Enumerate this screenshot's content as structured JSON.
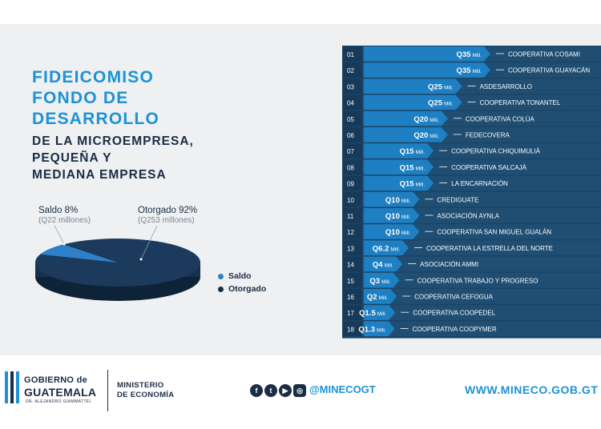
{
  "title": {
    "main_lines": [
      "FIDEICOMISO",
      "FONDO DE",
      "DESARROLLO"
    ],
    "sub_lines": [
      "DE LA MICROEMPRESA,",
      "PEQUEÑA Y",
      "MEDIANA EMPRESA"
    ]
  },
  "colors": {
    "accent": "#1d92d6",
    "navy": "#1b2c45",
    "row_bg": "#1b4464",
    "bar": "#1e7fc2"
  },
  "chart_data": [
    {
      "type": "pie",
      "slices": [
        {
          "label": "Saldo 8%",
          "sub": "(Q22 millones)",
          "percent": 8,
          "amount_millions": 22,
          "color": "#2f80c9"
        },
        {
          "label": "Otorgado 92%",
          "sub": "(Q253 millones)",
          "percent": 92,
          "amount_millions": 253,
          "color": "#1b3a5c"
        }
      ],
      "legend": [
        "Saldo",
        "Otorgado"
      ],
      "legend_position": "right"
    },
    {
      "type": "bar",
      "unit": "Mill.",
      "rows": [
        {
          "num": "01",
          "label": "Q35",
          "value": 35,
          "name": "COOPERATIVA COSAMI"
        },
        {
          "num": "02",
          "label": "Q35",
          "value": 35,
          "name": "COOPERATIVA GUAYACÁN"
        },
        {
          "num": "03",
          "label": "Q25",
          "value": 25,
          "name": "ASDESARROLLO"
        },
        {
          "num": "04",
          "label": "Q25",
          "value": 25,
          "name": "COOPERATIVA TONANTEL"
        },
        {
          "num": "05",
          "label": "Q20",
          "value": 20,
          "name": "COOPERATIVA COLÚA"
        },
        {
          "num": "06",
          "label": "Q20",
          "value": 20,
          "name": "FEDECOVERA"
        },
        {
          "num": "07",
          "label": "Q15",
          "value": 15,
          "name": "COOPERATIVA CHIQUIMULIÁ"
        },
        {
          "num": "08",
          "label": "Q15",
          "value": 15,
          "name": "COOPERATIVA SALCAJÁ"
        },
        {
          "num": "09",
          "label": "Q15",
          "value": 15,
          "name": "LA ENCARNACIÓN"
        },
        {
          "num": "10",
          "label": "Q10",
          "value": 10,
          "name": "CREDIGUATE"
        },
        {
          "num": "11",
          "label": "Q10",
          "value": 10,
          "name": "ASOCIACIÓN AYNLA"
        },
        {
          "num": "12",
          "label": "Q10",
          "value": 10,
          "name": "COOPERATIVA SAN MIGUEL GUALÁN"
        },
        {
          "num": "13",
          "label": "Q6.2",
          "value": 6.2,
          "name": "COOPERATIVA LA ESTRELLA DEL NORTE"
        },
        {
          "num": "14",
          "label": "Q4",
          "value": 4,
          "name": "ASOCIACIÓN AMMI"
        },
        {
          "num": "15",
          "label": "Q3",
          "value": 3,
          "name": "COOPERATIVA TRABAJO Y PROGRESO"
        },
        {
          "num": "16",
          "label": "Q2",
          "value": 2,
          "name": "COOPERATIVA CEFOGUA"
        },
        {
          "num": "17",
          "label": "Q1.5",
          "value": 1.5,
          "name": "COOPERATIVA COOPEDEL"
        },
        {
          "num": "18",
          "label": "Q1.3",
          "value": 1.3,
          "name": "COOPERATIVA COOPYMER"
        }
      ]
    }
  ],
  "footer": {
    "gobierno_line1": "GOBIERNO de",
    "gobierno_line2": "GUATEMALA",
    "gobierno_line3": "DR. ALEJANDRO GIAMMATTEI",
    "ministerio_line1": "MINISTERIO",
    "ministerio_line2": "DE ECONOMÍA",
    "social_icons": [
      "facebook-icon",
      "twitter-icon",
      "youtube-icon",
      "instagram-icon"
    ],
    "handle": "@MINECOGT",
    "website": "WWW.MINECO.GOB.GT"
  }
}
